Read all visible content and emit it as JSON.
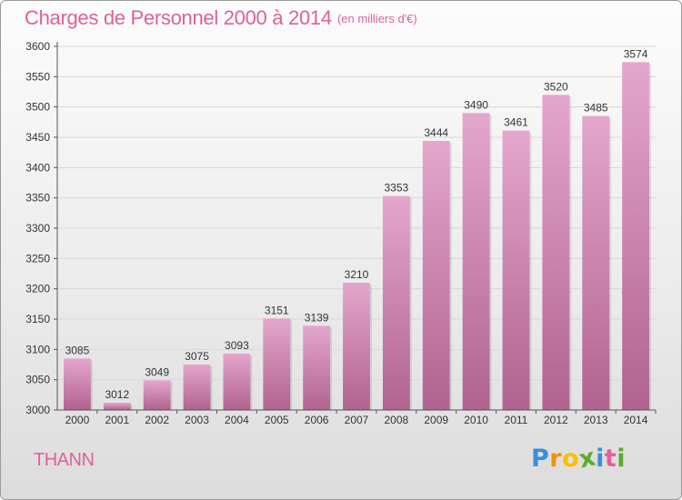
{
  "header": {
    "title": "Charges de Personnel 2000 à 2014",
    "subtitle": "(en milliers d'€)"
  },
  "footer": {
    "place": "THANN",
    "logo": {
      "letters": [
        "P",
        "r",
        "o",
        "x",
        "i",
        "t",
        "i"
      ],
      "colors": [
        "#3a8fd6",
        "#f39200",
        "#f6c000",
        "#5aab2e",
        "#3a8fd6",
        "#e0609a",
        "#5aab2e"
      ]
    }
  },
  "colors": {
    "title": "#e0609a",
    "bar_top": "#e4a6cc",
    "bar_bottom": "#b0638f",
    "axis": "#555555",
    "grid": "#d8d8d8"
  },
  "chart_data": {
    "type": "bar",
    "categories": [
      "2000",
      "2001",
      "2002",
      "2003",
      "2004",
      "2005",
      "2006",
      "2007",
      "2008",
      "2009",
      "2010",
      "2011",
      "2012",
      "2013",
      "2014"
    ],
    "values": [
      3085,
      3012,
      3049,
      3075,
      3093,
      3151,
      3139,
      3210,
      3353,
      3444,
      3490,
      3461,
      3520,
      3485,
      3574
    ],
    "title": "Charges de Personnel 2000 à 2014",
    "xlabel": "",
    "ylabel": "",
    "ylim": [
      3000,
      3600
    ],
    "yticks": [
      3000,
      3050,
      3100,
      3150,
      3200,
      3250,
      3300,
      3350,
      3400,
      3450,
      3500,
      3550,
      3600
    ],
    "grid": true,
    "data_labels": true
  }
}
